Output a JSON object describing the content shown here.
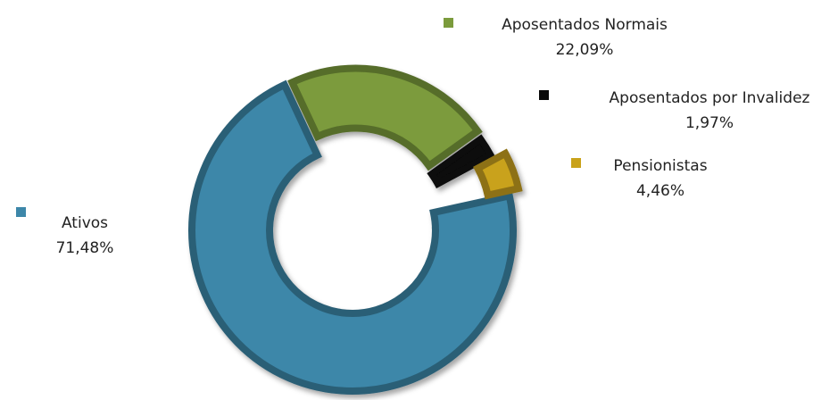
{
  "chart_data": {
    "type": "donut",
    "categories": [
      "Ativos",
      "Aposentados Normais",
      "Aposentados por Invalidez",
      "Pensionistas"
    ],
    "values": [
      71.48,
      22.09,
      1.97,
      4.46
    ],
    "value_labels": [
      "71,48%",
      "22,09%",
      "1,97%",
      "4,46%"
    ],
    "colors": [
      "#3d87a9",
      "#7b9b3c",
      "#0a0a0a",
      "#c9a21a"
    ]
  }
}
